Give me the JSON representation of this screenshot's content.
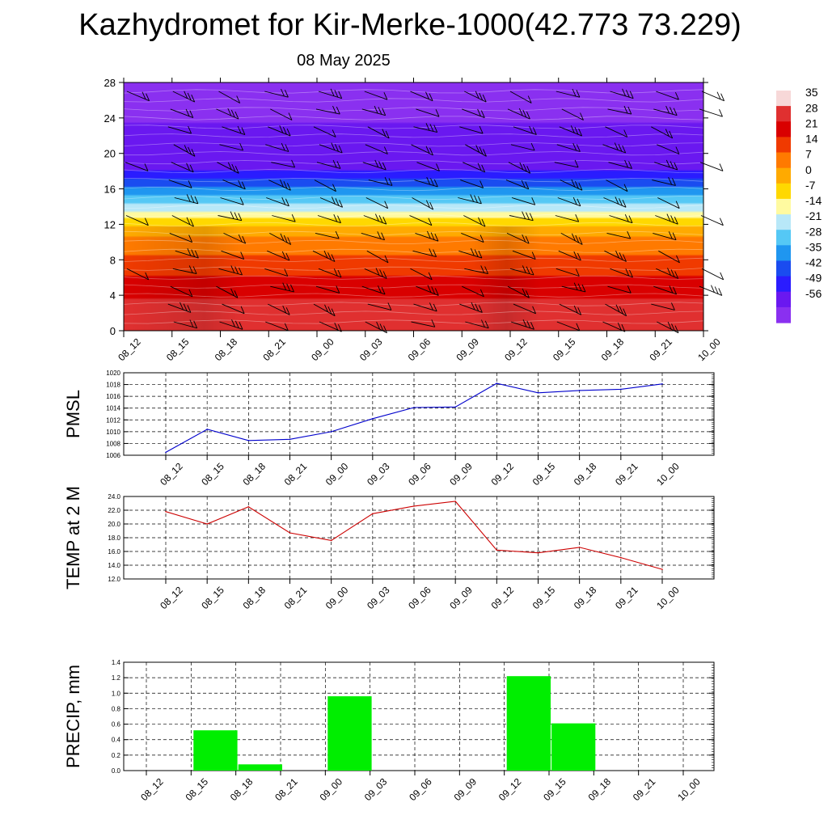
{
  "header": {
    "title": "Kazhydromet for Kir-Merke-1000(42.773 73.229)",
    "date": "08 May 2025"
  },
  "time_labels": [
    "08_12",
    "08_15",
    "08_18",
    "08_21",
    "09_00",
    "09_03",
    "09_06",
    "09_09",
    "09_12",
    "09_15",
    "09_18",
    "09_21",
    "10_00"
  ],
  "colorbar": {
    "labels": [
      "35",
      "28",
      "21",
      "14",
      "7",
      "0",
      "-7",
      "-14",
      "-21",
      "-28",
      "-35",
      "-42",
      "-49",
      "-56"
    ],
    "colors": [
      "#f7d8d8",
      "#e03030",
      "#d90000",
      "#f03a00",
      "#ff7a00",
      "#ffaa00",
      "#ffd800",
      "#fffaa0",
      "#b8e8f8",
      "#55c8f5",
      "#1f96f0",
      "#1a4cf0",
      "#2a1cff",
      "#6a18f0",
      "#8a30f0"
    ]
  },
  "chart_data": [
    {
      "type": "heatmap",
      "title": "",
      "x": [
        "08_12",
        "08_15",
        "08_18",
        "08_21",
        "09_00",
        "09_03",
        "09_06",
        "09_09",
        "09_12",
        "09_15",
        "09_18",
        "09_21",
        "10_00"
      ],
      "ylim": [
        0,
        28
      ],
      "yticks": [
        0,
        4,
        8,
        12,
        16,
        20,
        24,
        28
      ],
      "temperature_profile": [
        {
          "y": 0,
          "t": 30
        },
        {
          "y": 4,
          "t": 24
        },
        {
          "y": 8,
          "t": 13
        },
        {
          "y": 11,
          "t": 3
        },
        {
          "y": 12.5,
          "t": -8
        },
        {
          "y": 13.5,
          "t": -16
        },
        {
          "y": 15,
          "t": -28
        },
        {
          "y": 17,
          "t": -42
        },
        {
          "y": 18.5,
          "t": -52
        },
        {
          "y": 20,
          "t": -56
        },
        {
          "y": 22,
          "t": -52
        },
        {
          "y": 24,
          "t": -58
        },
        {
          "y": 28,
          "t": -60
        }
      ]
    },
    {
      "type": "line",
      "ylabel": "PMSL",
      "x": [
        "08_12",
        "08_15",
        "08_18",
        "08_21",
        "09_00",
        "09_03",
        "09_06",
        "09_09",
        "09_12",
        "09_15",
        "09_18",
        "09_21",
        "10_00"
      ],
      "values": [
        1006.5,
        1010.4,
        1008.5,
        1008.7,
        1010.0,
        1012.2,
        1014.1,
        1014.2,
        1018.2,
        1016.6,
        1017.0,
        1017.2,
        1018.1
      ],
      "ylim": [
        1006,
        1020
      ],
      "yticks": [
        "1006",
        "1008",
        "1010",
        "1012",
        "1014",
        "1016",
        "1018",
        "1020"
      ],
      "color": "#0000cc"
    },
    {
      "type": "line",
      "ylabel": "TEMP at 2 M",
      "x": [
        "08_12",
        "08_15",
        "08_18",
        "08_21",
        "09_00",
        "09_03",
        "09_06",
        "09_09",
        "09_12",
        "09_15",
        "09_18",
        "09_21",
        "10_00"
      ],
      "values": [
        21.8,
        20.0,
        22.5,
        18.7,
        17.6,
        21.5,
        22.6,
        23.3,
        16.2,
        15.8,
        16.6,
        15.1,
        13.4
      ],
      "ylim": [
        12,
        24
      ],
      "yticks": [
        "12.0",
        "14.0",
        "16.0",
        "18.0",
        "20.0",
        "22.0",
        "24.0"
      ],
      "color": "#cc0000"
    },
    {
      "type": "bar",
      "ylabel": "PRECIP, mm",
      "categories": [
        "08_12",
        "08_15",
        "08_18",
        "08_21",
        "09_00",
        "09_03",
        "09_06",
        "09_09",
        "09_12",
        "09_15",
        "09_18",
        "09_21",
        "10_00"
      ],
      "values": [
        0,
        0.52,
        0.08,
        0,
        0.96,
        0,
        0,
        0,
        1.22,
        0.61,
        0,
        0,
        0
      ],
      "ylim": [
        0,
        1.4
      ],
      "yticks": [
        "0.0",
        "0.2",
        "0.4",
        "0.6",
        "0.8",
        "1.0",
        "1.2",
        "1.4"
      ],
      "color": "#00ee00"
    }
  ]
}
